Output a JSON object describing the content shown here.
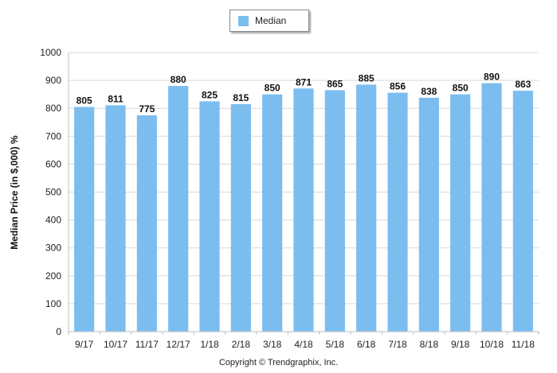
{
  "chart_data": {
    "type": "bar",
    "categories": [
      "9/17",
      "10/17",
      "11/17",
      "12/17",
      "1/18",
      "2/18",
      "3/18",
      "4/18",
      "5/18",
      "6/18",
      "7/18",
      "8/18",
      "9/18",
      "10/18",
      "11/18"
    ],
    "series": [
      {
        "name": "Median",
        "values": [
          805,
          811,
          775,
          880,
          825,
          815,
          850,
          871,
          865,
          885,
          856,
          838,
          850,
          890,
          863
        ],
        "color": "#7cbdf0"
      }
    ],
    "ylabel": "Median Price (in $,000) %",
    "xlabel": "",
    "ylim": [
      0,
      1000
    ],
    "yticks": [
      0,
      100,
      200,
      300,
      400,
      500,
      600,
      700,
      800,
      900,
      1000
    ],
    "grid": true,
    "legend_position": "top-center",
    "data_labels": true
  },
  "legend": {
    "label": "Median"
  },
  "footer": {
    "copyright": "Copyright © Trendgraphix, Inc."
  }
}
